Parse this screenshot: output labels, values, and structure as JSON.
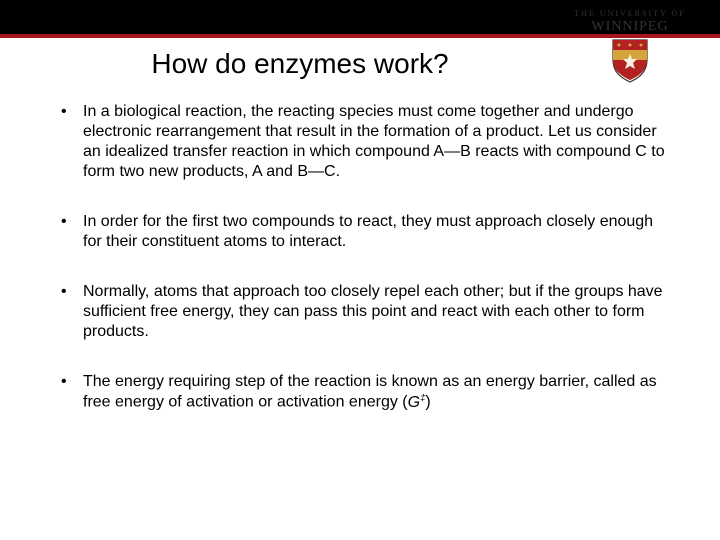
{
  "colors": {
    "header_bg": "#000000",
    "header_accent": "#a8151b",
    "page_bg": "#ffffff",
    "text": "#000000",
    "crest_red": "#b22222",
    "crest_gold": "#d4a53c"
  },
  "typography": {
    "title_fontsize": 28,
    "body_fontsize": 16,
    "body_lineheight": 1.25,
    "font_family": "Arial"
  },
  "logo": {
    "line1": "THE UNIVERSITY OF",
    "line2": "WINNIPEG"
  },
  "title": "How do enzymes work?",
  "bullets": [
    "In a biological reaction, the reacting species must come together and undergo electronic rearrangement that result in the formation of a product. Let us consider an idealized transfer reaction in which compound A—B reacts with compound C to form two new products, A and B—C.",
    "In order for the first two compounds to react, they must approach closely enough for their constituent atoms to interact.",
    "Normally, atoms that approach too closely repel each other; but if the groups have sufficient free energy, they can pass this point and react with each other to form products.",
    "The energy requiring step of the reaction is known as an energy barrier, called as free energy of activation or activation energy (G‡)"
  ]
}
